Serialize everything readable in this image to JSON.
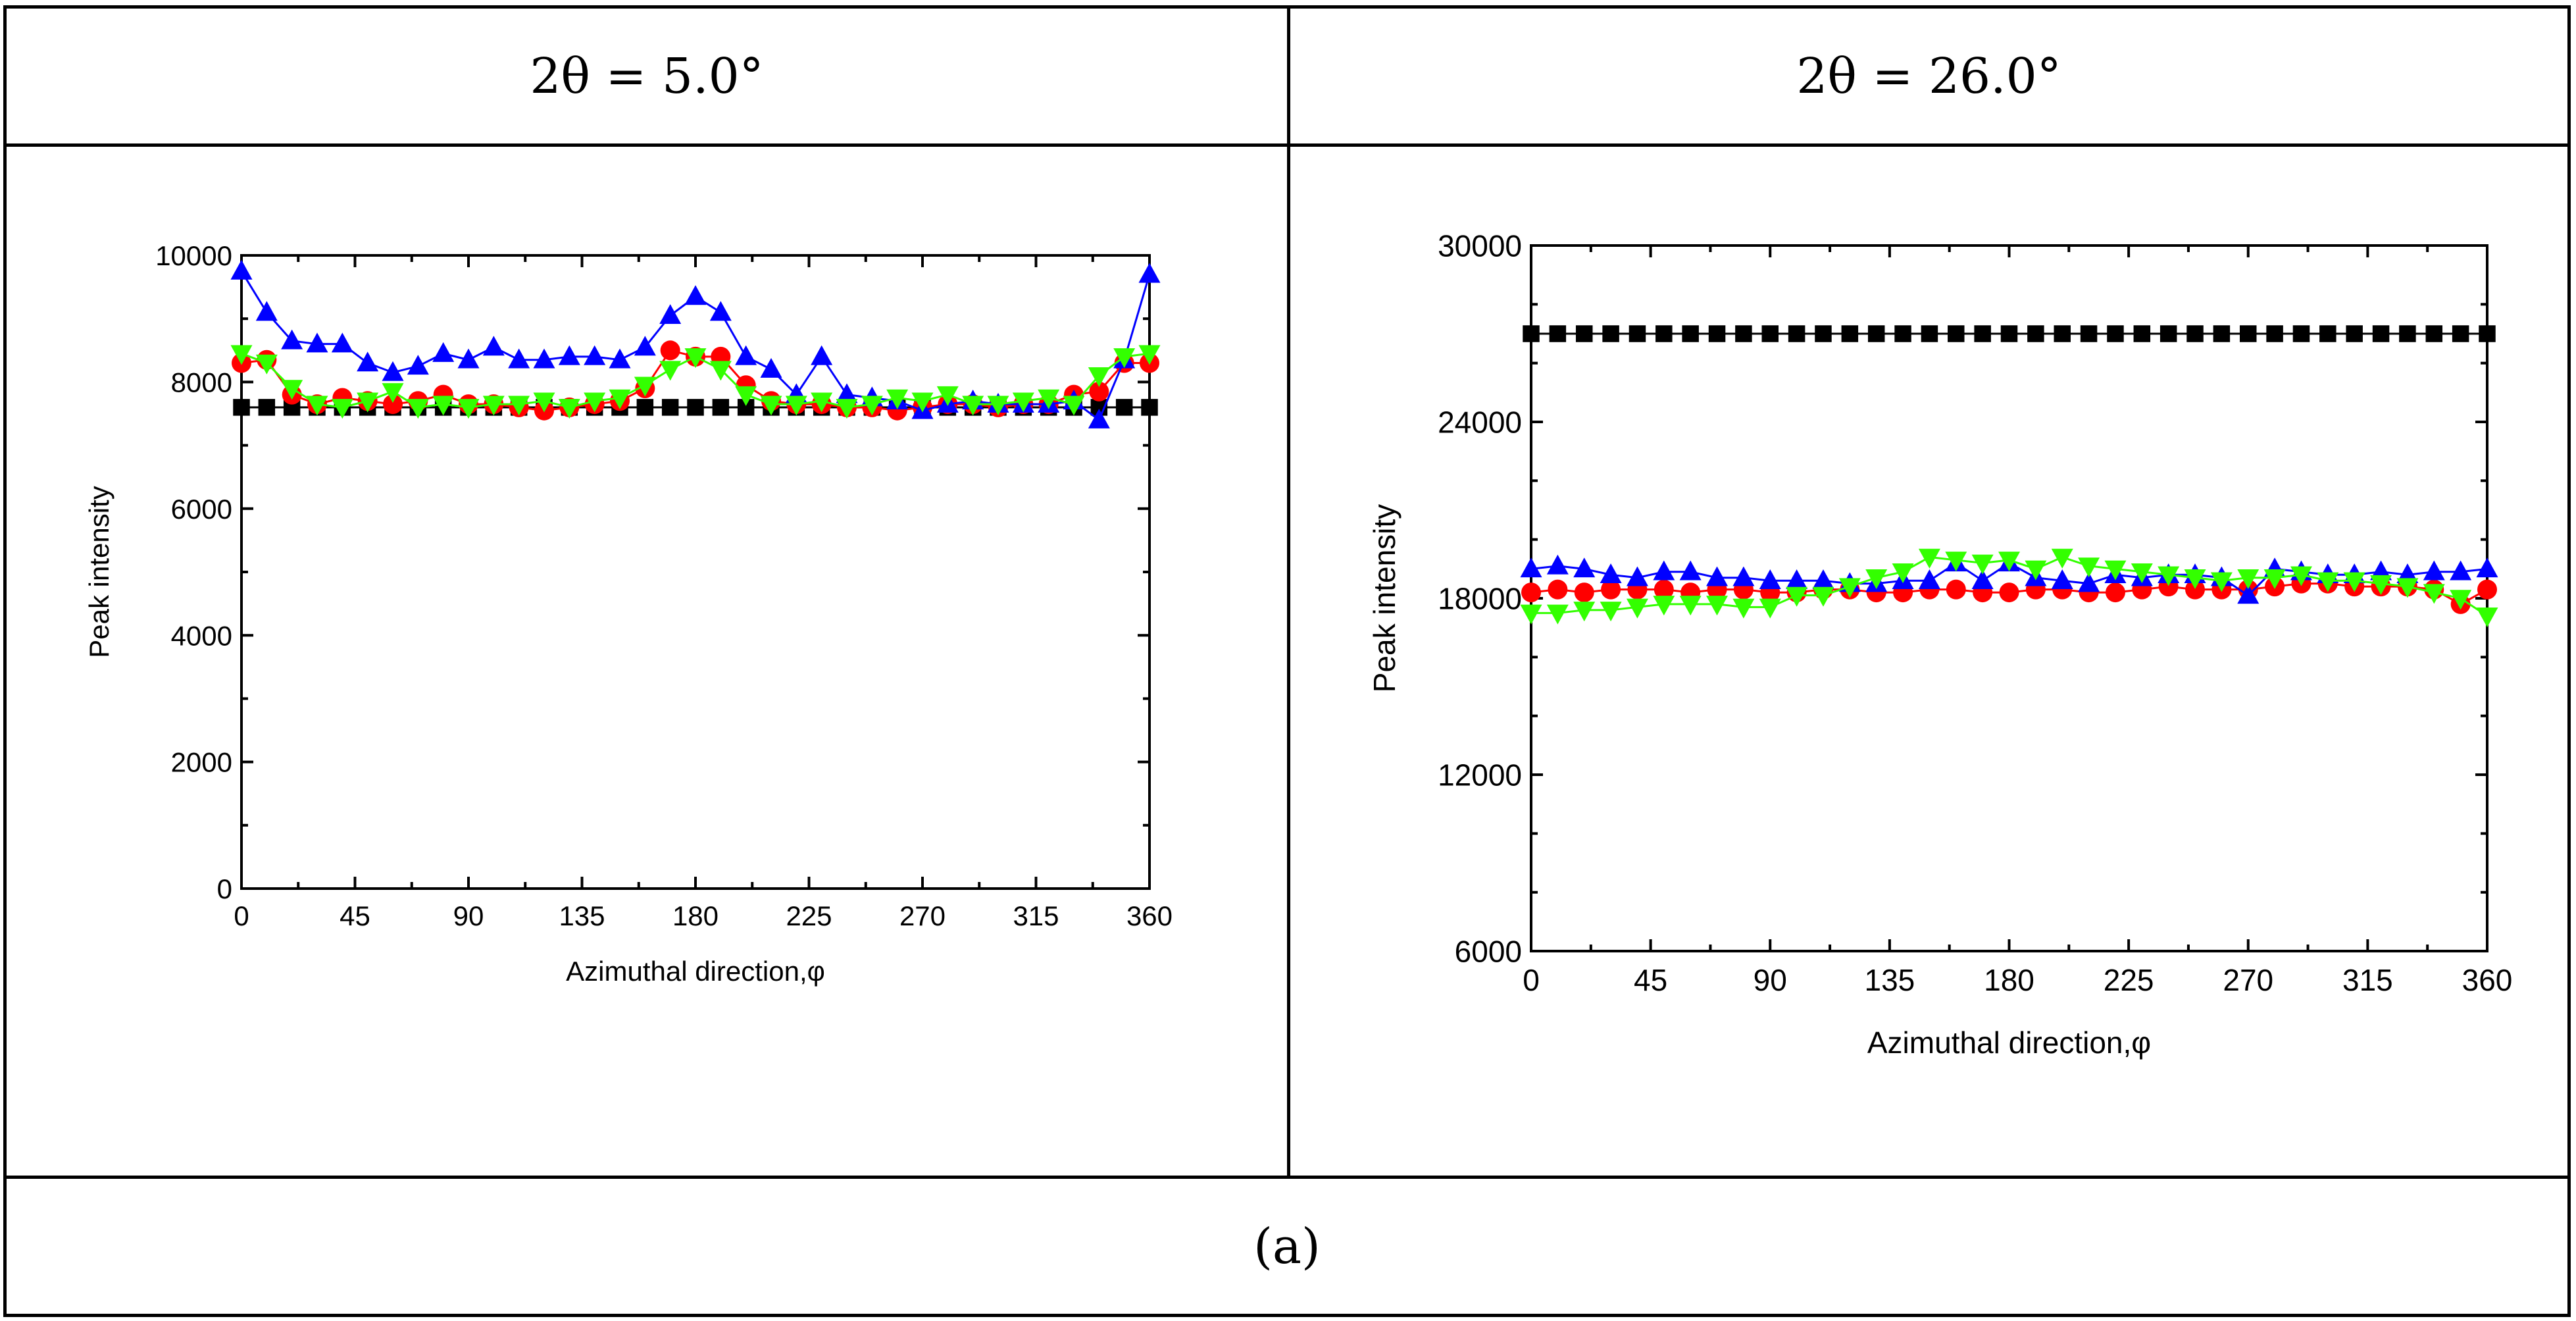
{
  "table": {
    "header_left": "2θ = 5.0°",
    "header_right": "2θ = 26.0°",
    "caption": "(a)"
  },
  "colors": {
    "black_series": "#000000",
    "red_series": "#ff0000",
    "blue_series": "#0000ff",
    "green_series": "#33ff00"
  },
  "chart_data": [
    {
      "type": "line",
      "title": "",
      "xlabel": "Azimuthal direction,φ",
      "ylabel": "Peak intensity",
      "xlim": [
        0,
        360
      ],
      "ylim": [
        0,
        10000
      ],
      "xticks": [
        "0",
        "45",
        "90",
        "135",
        "180",
        "225",
        "270",
        "315",
        "360"
      ],
      "yticks": [
        "0",
        "2000",
        "4000",
        "6000",
        "8000",
        "10000"
      ],
      "x": [
        0,
        10,
        20,
        30,
        40,
        50,
        60,
        70,
        80,
        90,
        100,
        110,
        120,
        130,
        140,
        150,
        160,
        170,
        180,
        190,
        200,
        210,
        220,
        230,
        240,
        250,
        260,
        270,
        280,
        290,
        300,
        310,
        320,
        330,
        340,
        350,
        360
      ],
      "series": [
        {
          "name": "square",
          "marker": "square",
          "color": "#000000",
          "values": [
            7600,
            7600,
            7600,
            7600,
            7600,
            7600,
            7600,
            7600,
            7600,
            7600,
            7600,
            7600,
            7600,
            7600,
            7600,
            7600,
            7600,
            7600,
            7600,
            7600,
            7600,
            7600,
            7600,
            7600,
            7600,
            7600,
            7600,
            7600,
            7600,
            7600,
            7600,
            7600,
            7600,
            7600,
            7600,
            7600,
            7600
          ]
        },
        {
          "name": "circle",
          "marker": "circle",
          "color": "#ff0000",
          "values": [
            8300,
            8350,
            7800,
            7650,
            7750,
            7700,
            7650,
            7700,
            7800,
            7650,
            7650,
            7600,
            7550,
            7600,
            7650,
            7700,
            7900,
            8500,
            8400,
            8400,
            7950,
            7700,
            7650,
            7650,
            7600,
            7600,
            7550,
            7600,
            7650,
            7650,
            7600,
            7650,
            7650,
            7800,
            7850,
            8300,
            8300
          ]
        },
        {
          "name": "triangle-up",
          "marker": "triangle-up",
          "color": "#0000ff",
          "values": [
            9750,
            9100,
            8650,
            8600,
            8600,
            8300,
            8150,
            8250,
            8450,
            8350,
            8550,
            8350,
            8350,
            8400,
            8400,
            8350,
            8550,
            9050,
            9350,
            9100,
            8400,
            8200,
            7800,
            8400,
            7800,
            7750,
            7700,
            7550,
            7650,
            7700,
            7650,
            7650,
            7650,
            7700,
            7400,
            8350,
            9700
          ]
        },
        {
          "name": "triangle-down",
          "marker": "triangle-down",
          "color": "#33ff00",
          "values": [
            8450,
            8300,
            7900,
            7650,
            7600,
            7700,
            7850,
            7600,
            7650,
            7600,
            7650,
            7650,
            7700,
            7600,
            7700,
            7750,
            7950,
            8200,
            8400,
            8200,
            7800,
            7650,
            7650,
            7700,
            7600,
            7650,
            7750,
            7700,
            7800,
            7650,
            7650,
            7700,
            7750,
            7650,
            8100,
            8400,
            8450
          ]
        }
      ]
    },
    {
      "type": "line",
      "title": "",
      "xlabel": "Azimuthal direction,φ",
      "ylabel": "Peak intensity",
      "xlim": [
        0,
        360
      ],
      "ylim": [
        6000,
        30000
      ],
      "xticks": [
        "0",
        "45",
        "90",
        "135",
        "180",
        "225",
        "270",
        "315",
        "360"
      ],
      "yticks": [
        "6000",
        "12000",
        "18000",
        "24000",
        "30000"
      ],
      "x": [
        0,
        10,
        20,
        30,
        40,
        50,
        60,
        70,
        80,
        90,
        100,
        110,
        120,
        130,
        140,
        150,
        160,
        170,
        180,
        190,
        200,
        210,
        220,
        230,
        240,
        250,
        260,
        270,
        280,
        290,
        300,
        310,
        320,
        330,
        340,
        350,
        360
      ],
      "series": [
        {
          "name": "square",
          "marker": "square",
          "color": "#000000",
          "values": [
            27000,
            27000,
            27000,
            27000,
            27000,
            27000,
            27000,
            27000,
            27000,
            27000,
            27000,
            27000,
            27000,
            27000,
            27000,
            27000,
            27000,
            27000,
            27000,
            27000,
            27000,
            27000,
            27000,
            27000,
            27000,
            27000,
            27000,
            27000,
            27000,
            27000,
            27000,
            27000,
            27000,
            27000,
            27000,
            27000,
            27000
          ]
        },
        {
          "name": "circle",
          "marker": "circle",
          "color": "#ff0000",
          "values": [
            18200,
            18300,
            18200,
            18300,
            18300,
            18300,
            18200,
            18300,
            18300,
            18200,
            18200,
            18300,
            18300,
            18200,
            18200,
            18300,
            18300,
            18200,
            18200,
            18300,
            18300,
            18200,
            18200,
            18300,
            18400,
            18300,
            18300,
            18300,
            18400,
            18500,
            18500,
            18400,
            18400,
            18400,
            18300,
            17800,
            18300
          ]
        },
        {
          "name": "triangle-up",
          "marker": "triangle-up",
          "color": "#0000ff",
          "values": [
            19000,
            19100,
            19000,
            18800,
            18700,
            18900,
            18900,
            18700,
            18700,
            18600,
            18600,
            18600,
            18500,
            18500,
            18600,
            18600,
            19200,
            18600,
            19200,
            18700,
            18600,
            18500,
            18800,
            18700,
            18800,
            18800,
            18700,
            18100,
            19000,
            18900,
            18800,
            18800,
            18900,
            18800,
            18900,
            18900,
            19000
          ]
        },
        {
          "name": "triangle-down",
          "marker": "triangle-down",
          "color": "#33ff00",
          "values": [
            17500,
            17500,
            17600,
            17600,
            17700,
            17800,
            17800,
            17800,
            17700,
            17700,
            18100,
            18100,
            18400,
            18700,
            18900,
            19400,
            19300,
            19200,
            19300,
            19000,
            19400,
            19100,
            19000,
            18900,
            18800,
            18700,
            18600,
            18700,
            18700,
            18800,
            18600,
            18600,
            18500,
            18400,
            18200,
            18000,
            17400
          ]
        }
      ]
    }
  ]
}
